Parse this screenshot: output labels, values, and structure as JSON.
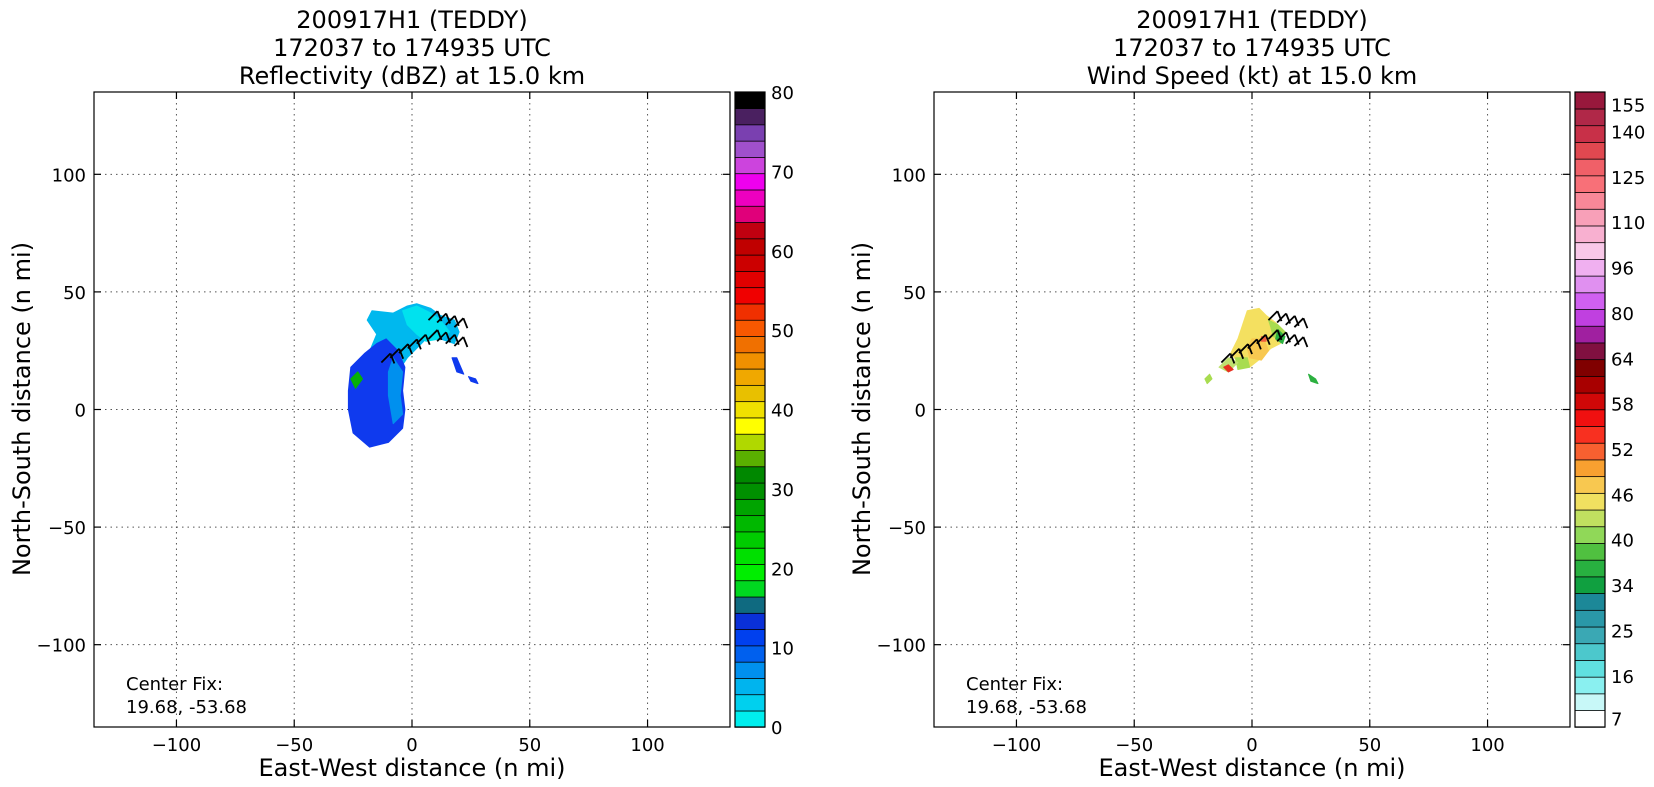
{
  "chart_data": [
    {
      "type": "heatmap",
      "title_lines": [
        "200917H1 (TEDDY)",
        "172037 to 174935 UTC",
        "Reflectivity (dBZ) at 15.0 km"
      ],
      "xlabel": "East-West distance (n mi)",
      "ylabel": "North-South distance (n mi)",
      "xlim": [
        -135,
        135
      ],
      "ylim": [
        -135,
        135
      ],
      "xticks": [
        -100,
        -50,
        0,
        50,
        100
      ],
      "yticks": [
        -100,
        -50,
        0,
        50,
        100
      ],
      "xtick_labels": [
        "−100",
        "−50",
        "0",
        "50",
        "100"
      ],
      "ytick_labels": [
        "−100",
        "−50",
        "0",
        "50",
        "100"
      ],
      "grid": true,
      "annotation_lines": [
        "Center Fix:",
        "19.68, -53.68"
      ],
      "field_blobs": [
        {
          "color": "#00b8ee",
          "points": [
            [
              -17,
              42
            ],
            [
              -8,
              41
            ],
            [
              -2,
              44
            ],
            [
              2,
              45
            ],
            [
              8,
              43
            ],
            [
              12,
              40
            ],
            [
              18,
              38
            ],
            [
              20,
              33
            ],
            [
              18,
              28
            ],
            [
              12,
              30
            ],
            [
              6,
              30
            ],
            [
              2,
              26
            ],
            [
              -2,
              22
            ],
            [
              -6,
              16
            ],
            [
              -12,
              10
            ],
            [
              -18,
              12
            ],
            [
              -20,
              20
            ],
            [
              -15,
              32
            ],
            [
              -19,
              38
            ]
          ]
        },
        {
          "color": "#00e2ee",
          "points": [
            [
              -4,
              42
            ],
            [
              2,
              44
            ],
            [
              8,
              41
            ],
            [
              12,
              38
            ],
            [
              16,
              33
            ],
            [
              12,
              30
            ],
            [
              6,
              29
            ],
            [
              2,
              32
            ],
            [
              -2,
              36
            ]
          ]
        },
        {
          "color": "#0f3aee",
          "points": [
            [
              -26,
              18
            ],
            [
              -20,
              24
            ],
            [
              -15,
              28
            ],
            [
              -11,
              30
            ],
            [
              -6,
              25
            ],
            [
              -3,
              18
            ],
            [
              -4,
              8
            ],
            [
              -3,
              0
            ],
            [
              -4,
              -8
            ],
            [
              -10,
              -14
            ],
            [
              -18,
              -16
            ],
            [
              -25,
              -10
            ],
            [
              -27,
              0
            ],
            [
              -27,
              8
            ]
          ]
        },
        {
          "color": "#0090ee",
          "points": [
            [
              -8,
              22
            ],
            [
              -4,
              16
            ],
            [
              -5,
              6
            ],
            [
              -4,
              -2
            ],
            [
              -8,
              -6
            ],
            [
              -10,
              6
            ],
            [
              -10,
              16
            ]
          ]
        },
        {
          "color": "#06b006",
          "points": [
            [
              -26,
              13
            ],
            [
              -23,
              16
            ],
            [
              -21,
              13
            ],
            [
              -24,
              9
            ]
          ]
        },
        {
          "color": "#0f3aee",
          "points": [
            [
              17,
              22
            ],
            [
              19,
              22
            ],
            [
              22,
              15
            ],
            [
              19,
              16
            ]
          ]
        },
        {
          "color": "#0f3aee",
          "points": [
            [
              24,
              14
            ],
            [
              27,
              13
            ],
            [
              28,
              11
            ],
            [
              25,
              12
            ]
          ]
        }
      ],
      "wind_barb_rows": [
        {
          "x_start": -13,
          "y_start": 20,
          "x_end": 2,
          "y_end": 28,
          "count": 5
        },
        {
          "x_start": 7,
          "y_start": 38,
          "x_end": 18,
          "y_end": 35,
          "count": 4
        },
        {
          "x_start": 7,
          "y_start": 30,
          "x_end": 18,
          "y_end": 27,
          "count": 4
        }
      ],
      "colorbar": {
        "vmin": 0,
        "vmax": 80,
        "tick_values": [
          0,
          10,
          20,
          30,
          40,
          50,
          60,
          70,
          80
        ],
        "tick_labels": [
          "0",
          "10",
          "20",
          "30",
          "40",
          "50",
          "60",
          "70",
          "80"
        ],
        "colors": [
          "#00eeee",
          "#00d0ee",
          "#00b4ee",
          "#0090ee",
          "#0060ee",
          "#0040ee",
          "#0a30d8",
          "#0f6a80",
          "#00d820",
          "#00ee00",
          "#00e000",
          "#00cc00",
          "#00b800",
          "#00a400",
          "#009000",
          "#008800",
          "#5ab000",
          "#b0d800",
          "#ffff00",
          "#f0e000",
          "#e8c000",
          "#f0a800",
          "#f09000",
          "#f07000",
          "#f85800",
          "#f03000",
          "#f00000",
          "#e00000",
          "#cc0000",
          "#c00000",
          "#c00010",
          "#e0007a",
          "#ee00c0",
          "#ee00ee",
          "#cc44dd",
          "#a050cc",
          "#7a40b0",
          "#4a2060",
          "#000000"
        ]
      }
    },
    {
      "type": "heatmap",
      "title_lines": [
        "200917H1 (TEDDY)",
        "172037 to 174935 UTC",
        "Wind Speed (kt) at 15.0 km"
      ],
      "xlabel": "East-West distance (n mi)",
      "ylabel": "North-South distance (n mi)",
      "xlim": [
        -135,
        135
      ],
      "ylim": [
        -135,
        135
      ],
      "xticks": [
        -100,
        -50,
        0,
        50,
        100
      ],
      "yticks": [
        -100,
        -50,
        0,
        50,
        100
      ],
      "xtick_labels": [
        "−100",
        "−50",
        "0",
        "50",
        "100"
      ],
      "ytick_labels": [
        "−100",
        "−50",
        "0",
        "50",
        "100"
      ],
      "grid": true,
      "annotation_lines": [
        "Center Fix:",
        "19.68, -53.68"
      ],
      "field_blobs": [
        {
          "color": "#f4e060",
          "points": [
            [
              -2,
              42
            ],
            [
              3,
              43
            ],
            [
              6,
              40
            ],
            [
              10,
              37
            ],
            [
              14,
              33
            ],
            [
              12,
              28
            ],
            [
              8,
              26
            ],
            [
              4,
              22
            ],
            [
              -1,
              18
            ],
            [
              -6,
              20
            ],
            [
              -9,
              24
            ],
            [
              -6,
              30
            ],
            [
              -4,
              36
            ]
          ]
        },
        {
          "color": "#a8dc50",
          "points": [
            [
              7,
              38
            ],
            [
              11,
              36
            ],
            [
              14,
              33
            ],
            [
              12,
              30
            ],
            [
              9,
              31
            ],
            [
              8,
              35
            ]
          ]
        },
        {
          "color": "#2cb040",
          "points": [
            [
              11,
              34
            ],
            [
              14,
              31
            ],
            [
              13,
              28
            ],
            [
              10,
              30
            ]
          ]
        },
        {
          "color": "#f8c850",
          "points": [
            [
              0,
              30
            ],
            [
              5,
              30
            ],
            [
              7,
              25
            ],
            [
              4,
              21
            ],
            [
              -1,
              22
            ],
            [
              -2,
              26
            ]
          ]
        },
        {
          "color": "#a8dc50",
          "points": [
            [
              -7,
              22
            ],
            [
              -2,
              22
            ],
            [
              -1,
              18
            ],
            [
              -6,
              17
            ]
          ]
        },
        {
          "color": "#c0e070",
          "points": [
            [
              -14,
              18
            ],
            [
              -10,
              22
            ],
            [
              -6,
              20
            ],
            [
              -10,
              16
            ]
          ]
        },
        {
          "color": "#a8dc50",
          "points": [
            [
              -20,
              13
            ],
            [
              -18,
              15
            ],
            [
              -17,
              13
            ],
            [
              -19,
              11
            ]
          ]
        },
        {
          "color": "#e83020",
          "points": [
            [
              -12,
              18
            ],
            [
              -10,
              19
            ],
            [
              -8,
              17
            ],
            [
              -10,
              16
            ]
          ]
        },
        {
          "color": "#2cb040",
          "points": [
            [
              24,
              15
            ],
            [
              27,
              13
            ],
            [
              28,
              11
            ],
            [
              25,
              12
            ]
          ]
        },
        {
          "color": "#f06040",
          "points": [
            [
              4,
              31
            ],
            [
              6,
              31
            ],
            [
              6,
              29
            ],
            [
              4,
              29
            ]
          ]
        }
      ],
      "wind_barb_rows": [
        {
          "x_start": -13,
          "y_start": 20,
          "x_end": 2,
          "y_end": 28,
          "count": 5
        },
        {
          "x_start": 7,
          "y_start": 38,
          "x_end": 18,
          "y_end": 35,
          "count": 4
        },
        {
          "x_start": 7,
          "y_start": 30,
          "x_end": 18,
          "y_end": 27,
          "count": 4
        }
      ],
      "colorbar": {
        "tick_values": [
          7,
          16,
          25,
          34,
          40,
          46,
          52,
          58,
          64,
          80,
          96,
          110,
          125,
          140,
          155
        ],
        "tick_labels": [
          "7",
          "16",
          "25",
          "34",
          "40",
          "46",
          "52",
          "58",
          "64",
          "80",
          "96",
          "110",
          "125",
          "140",
          "155"
        ],
        "colors": [
          "#ffffff",
          "#c8f8f8",
          "#8af0f0",
          "#60e0e0",
          "#4cc8cc",
          "#3aa8b4",
          "#2a98a8",
          "#1c8898",
          "#10a040",
          "#28b040",
          "#50c040",
          "#90d858",
          "#c0e060",
          "#f0e060",
          "#f8c850",
          "#f8a030",
          "#f86030",
          "#f83020",
          "#f01010",
          "#d00808",
          "#a80000",
          "#800000",
          "#801040",
          "#a020a0",
          "#c040e0",
          "#d060f0",
          "#e090f0",
          "#f0b0f0",
          "#f8c8e8",
          "#f8b0d0",
          "#f8a0b8",
          "#f88898",
          "#f87078",
          "#f06068",
          "#e04850",
          "#c83048",
          "#b02848",
          "#98183c"
        ]
      }
    }
  ]
}
